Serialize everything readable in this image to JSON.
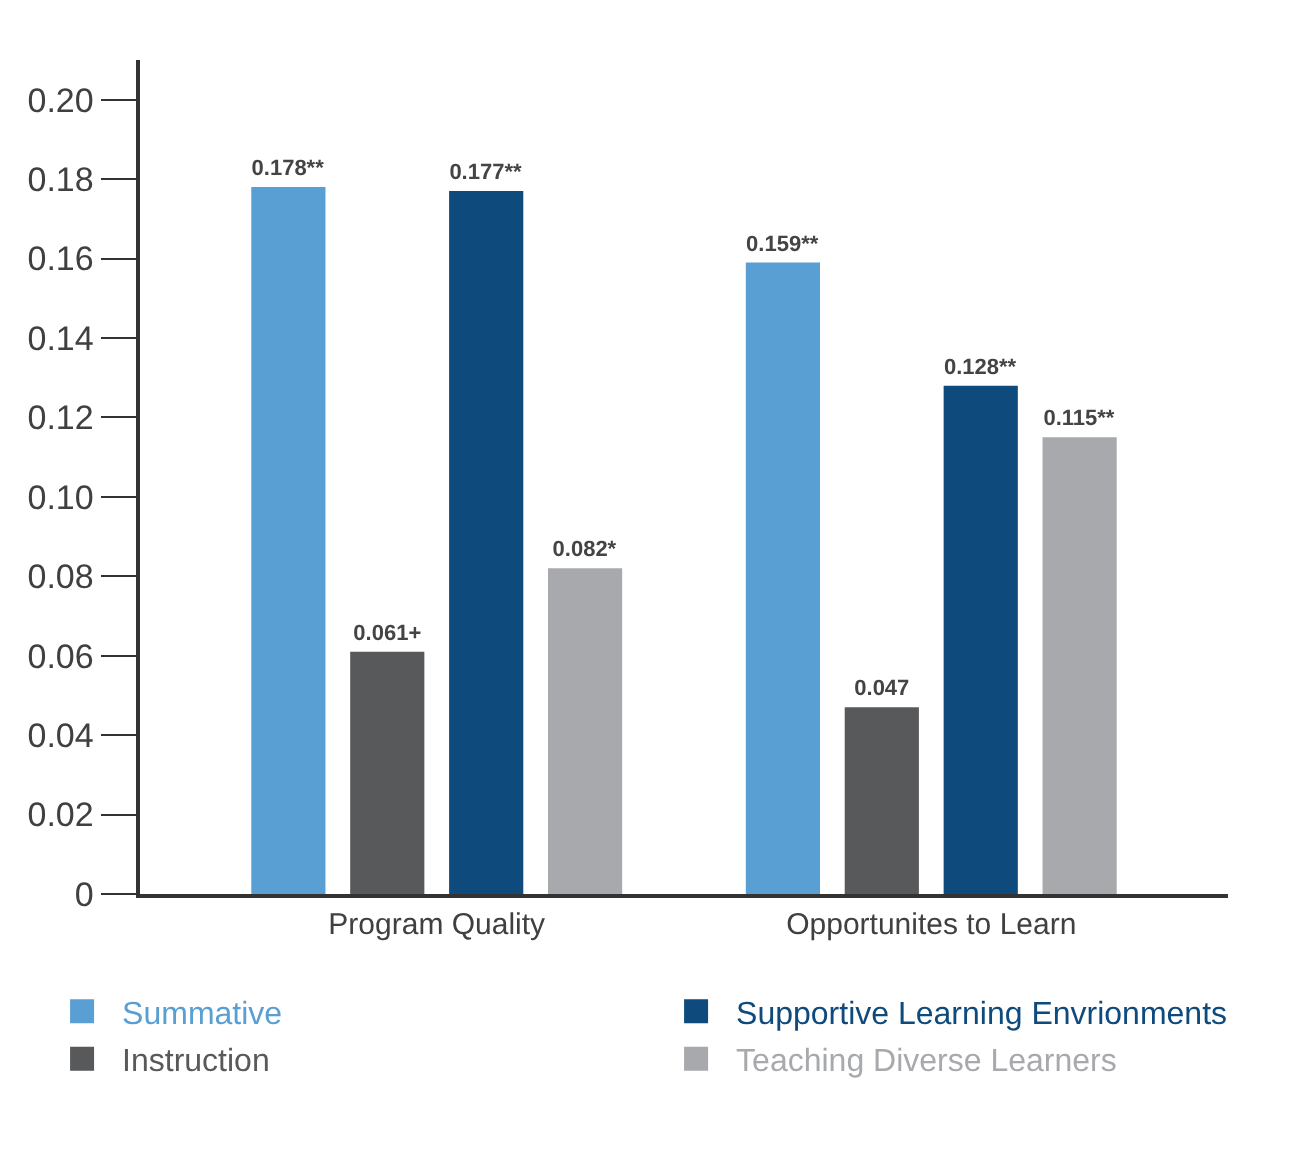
{
  "chart_data": {
    "type": "bar",
    "categories": [
      "Program Quality",
      "Opportunites to Learn"
    ],
    "series": [
      {
        "name": "Summative",
        "color": "#5a9fd4",
        "values": [
          0.178,
          0.159
        ],
        "value_labels": [
          "0.178**",
          "0.159**"
        ]
      },
      {
        "name": "Instruction",
        "color": "#58595b",
        "values": [
          0.061,
          0.047
        ],
        "value_labels": [
          "0.061+",
          "0.047"
        ]
      },
      {
        "name": "Supportive Learning Envrionments",
        "color": "#0e4a7c",
        "values": [
          0.177,
          0.128
        ],
        "value_labels": [
          "0.177**",
          "0.128**"
        ]
      },
      {
        "name": "Teaching Diverse Learners",
        "color": "#a7a9ac",
        "values": [
          0.082,
          0.115
        ],
        "value_labels": [
          "0.082*",
          "0.115**"
        ]
      }
    ],
    "ylim": [
      0,
      0.21
    ],
    "yticks": [
      0,
      0.02,
      0.04,
      0.06,
      0.08,
      {
        "value": 0.1,
        "label": "0.10"
      },
      0.12,
      0.14,
      0.16,
      0.18,
      {
        "value": 0.2,
        "label": "0.20"
      }
    ],
    "legend": "bottom"
  }
}
